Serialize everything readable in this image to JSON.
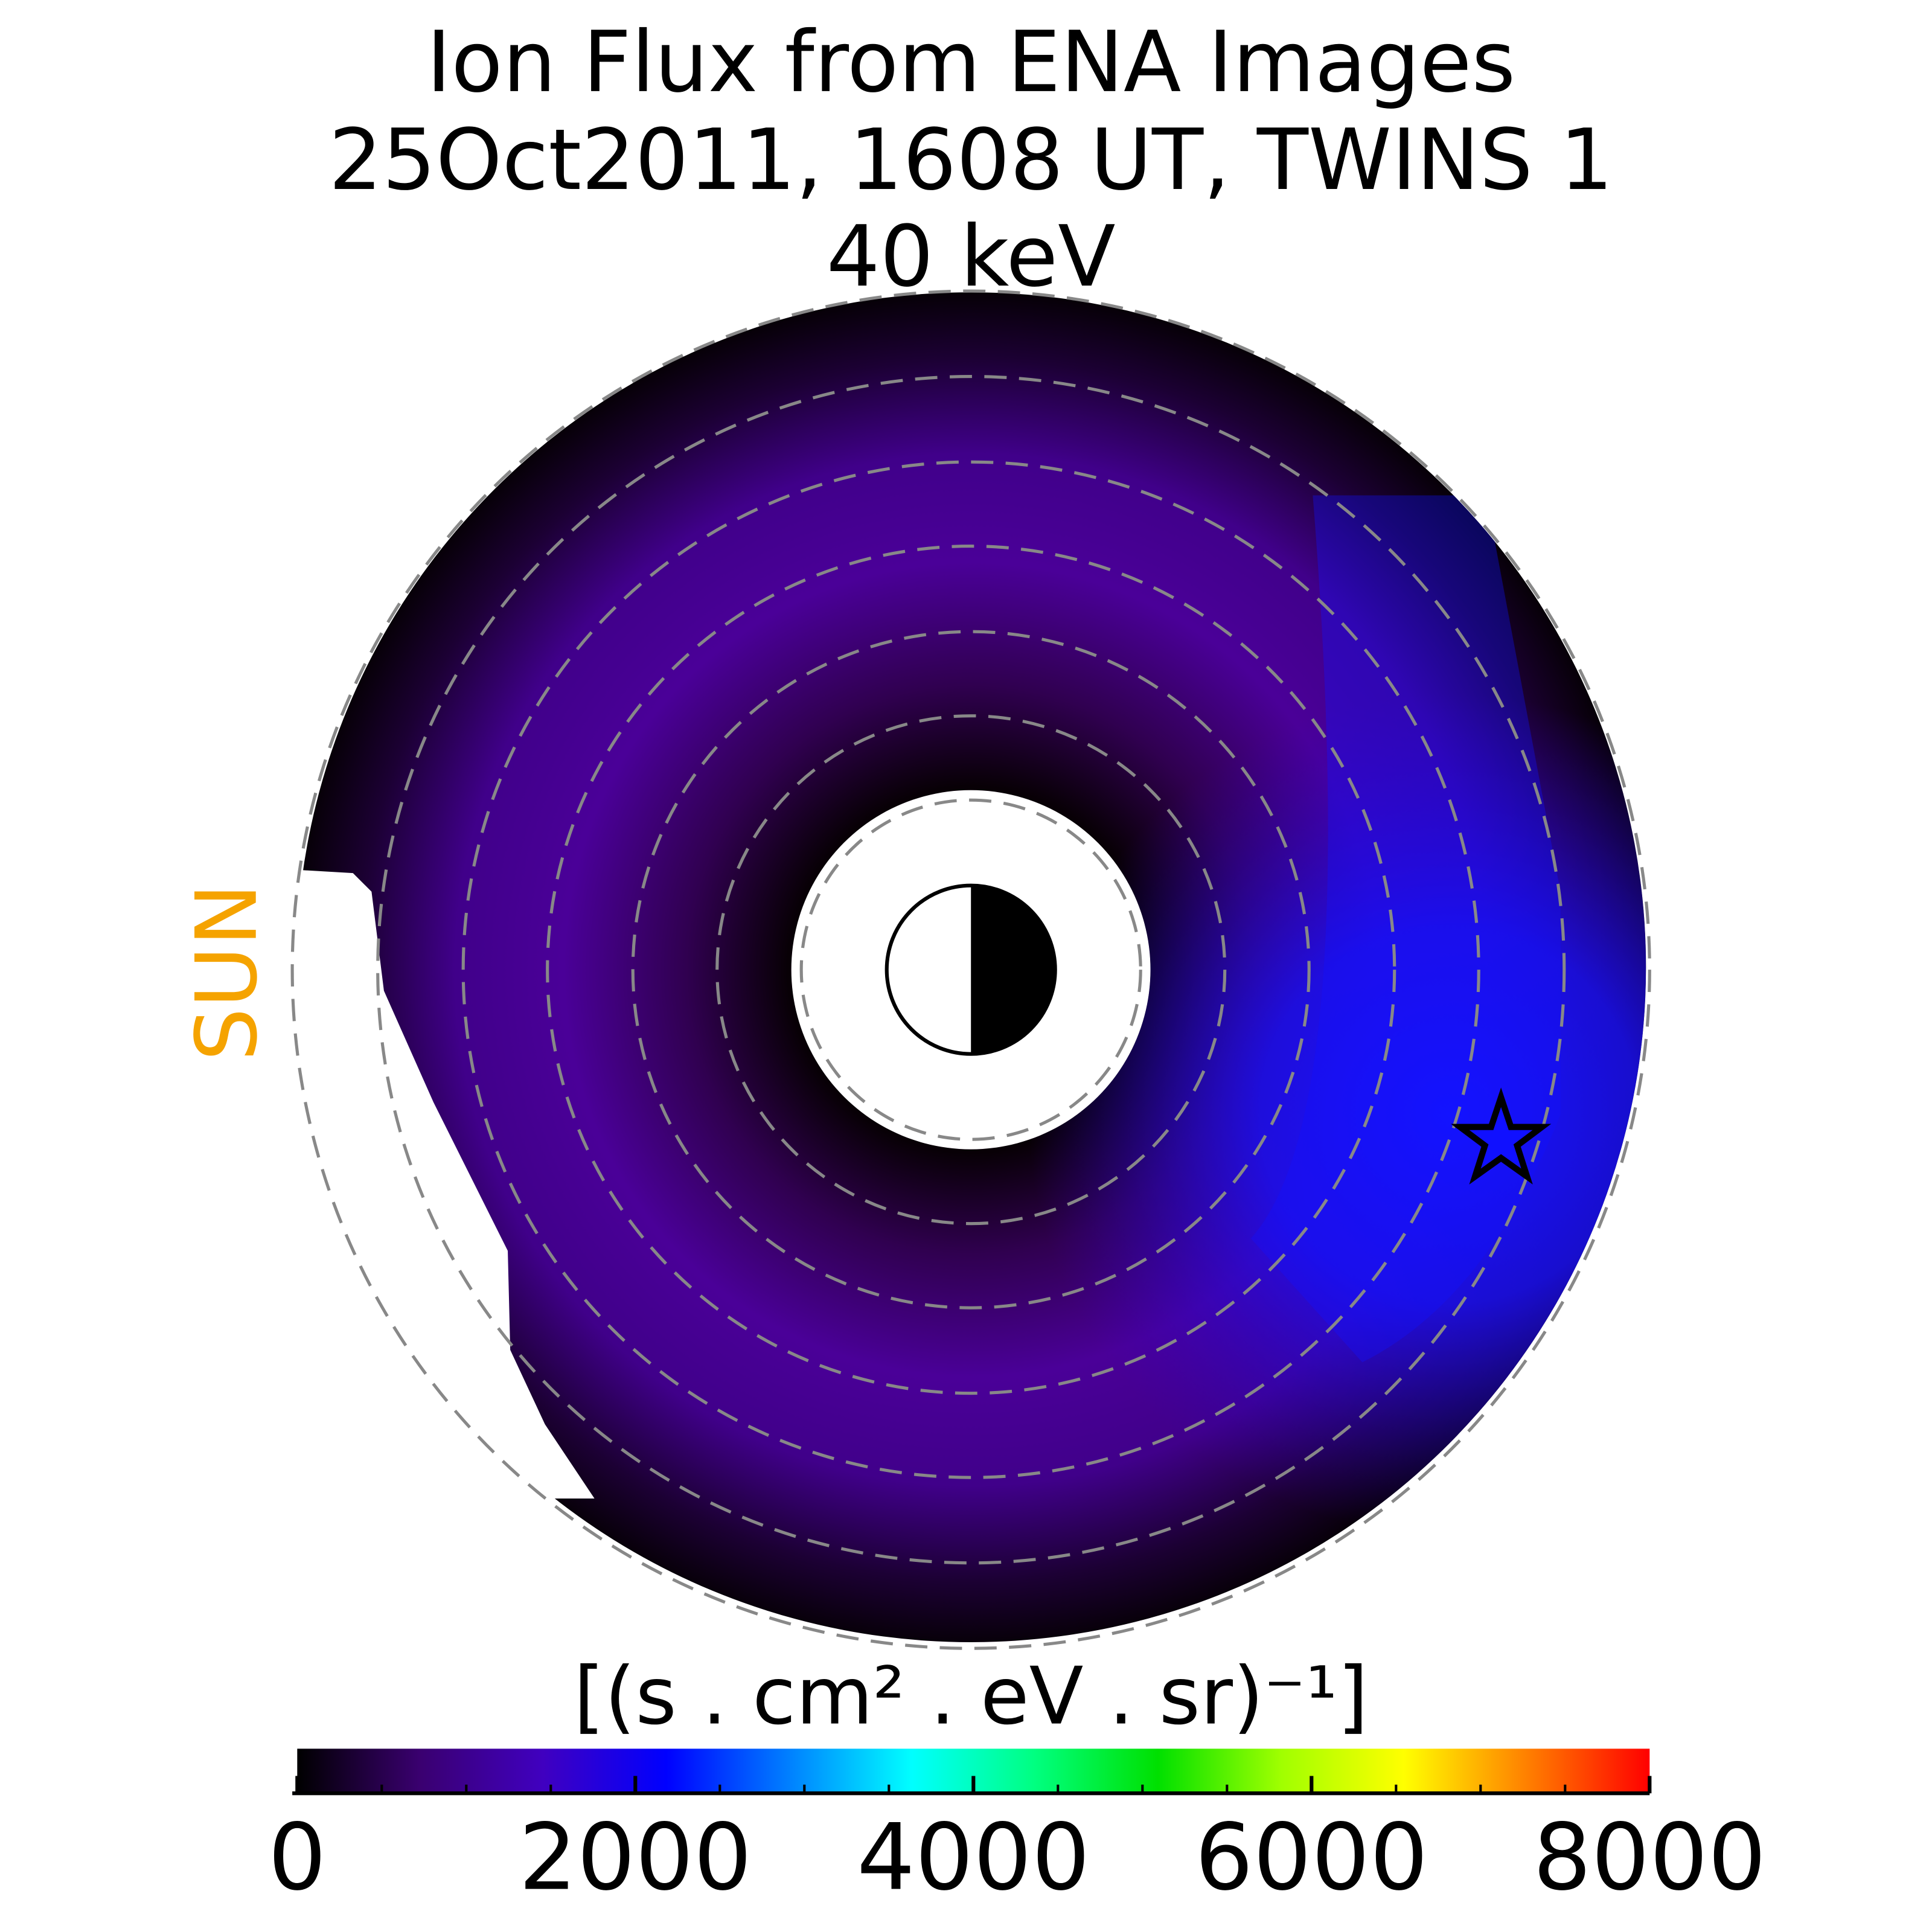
{
  "chart_data": {
    "type": "polar-map",
    "title": [
      "Ion Flux from  ENA Images",
      "25Oct2011, 1608 UT,  TWINS 1",
      "40 keV"
    ],
    "sun_label": "SUN",
    "colorbar_label": "[(s . cm²  . eV . sr)⁻¹]",
    "colorbar_lim": [
      0,
      8000
    ],
    "colorbar_ticks": [
      0,
      2000,
      4000,
      6000,
      8000
    ],
    "colorbar_minor_ticks": [
      500,
      1000,
      1500,
      2500,
      3000,
      3500,
      4500,
      5000,
      5500,
      6500,
      7000,
      7500
    ],
    "colormap": [
      "#000000",
      "#3a0070",
      "#4000c0",
      "#0000ff",
      "#0080ff",
      "#00ffff",
      "#00ff80",
      "#00e000",
      "#a0ff00",
      "#ffff00",
      "#ff8000",
      "#ff0000"
    ]
  }
}
